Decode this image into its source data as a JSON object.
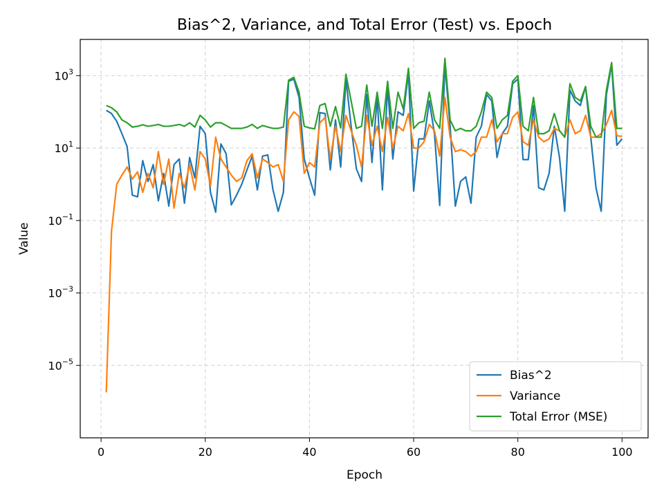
{
  "chart_data": {
    "type": "line",
    "title": "Bias^2, Variance, and Total Error (Test) vs. Epoch",
    "xlabel": "Epoch",
    "ylabel": "Value",
    "xlim": [
      -4,
      105
    ],
    "ylim": [
      1e-07,
      10000.0
    ],
    "yscale": "log",
    "xticks": [
      0,
      20,
      40,
      60,
      80,
      100
    ],
    "xtick_labels": [
      "0",
      "20",
      "40",
      "60",
      "80",
      "100"
    ],
    "ytick_exponents": [
      -5,
      -3,
      -1,
      1,
      3
    ],
    "grid": true,
    "legend_position": "lower-right",
    "x": [
      1,
      2,
      3,
      4,
      5,
      6,
      7,
      8,
      9,
      10,
      11,
      12,
      13,
      14,
      15,
      16,
      17,
      18,
      19,
      20,
      21,
      22,
      23,
      24,
      25,
      26,
      27,
      28,
      29,
      30,
      31,
      32,
      33,
      34,
      35,
      36,
      37,
      38,
      39,
      40,
      41,
      42,
      43,
      44,
      45,
      46,
      47,
      48,
      49,
      50,
      51,
      52,
      53,
      54,
      55,
      56,
      57,
      58,
      59,
      60,
      61,
      62,
      63,
      64,
      65,
      66,
      67,
      68,
      69,
      70,
      71,
      72,
      73,
      74,
      75,
      76,
      77,
      78,
      79,
      80,
      81,
      82,
      83,
      84,
      85,
      86,
      87,
      88,
      89,
      90,
      91,
      92,
      93,
      94,
      95,
      96,
      97,
      98,
      99,
      100
    ],
    "series": [
      {
        "name": "Bias^2",
        "color": "#1f77b4",
        "values": [
          110,
          90,
          55,
          25,
          11,
          0.5,
          0.45,
          4.5,
          1.2,
          3.5,
          0.35,
          2,
          0.25,
          3.5,
          5,
          0.3,
          5.5,
          1.5,
          40,
          25,
          0.6,
          0.17,
          13,
          7,
          0.27,
          0.5,
          1,
          2.5,
          6,
          0.7,
          6,
          6.5,
          0.7,
          0.18,
          0.6,
          700,
          800,
          250,
          5,
          1.5,
          0.5,
          95,
          90,
          2.5,
          60,
          3,
          800,
          40,
          2.7,
          1.2,
          300,
          4,
          250,
          0.7,
          500,
          5,
          100,
          80,
          1200,
          0.65,
          18,
          18,
          200,
          25,
          0.26,
          2000,
          40,
          0.25,
          1.2,
          1.6,
          0.3,
          20,
          40,
          300,
          200,
          5.5,
          25,
          40,
          600,
          800,
          4.8,
          4.8,
          150,
          0.8,
          0.7,
          2,
          40,
          5.5,
          0.18,
          400,
          200,
          150,
          500,
          20,
          0.8,
          0.18,
          300,
          2000,
          12,
          18
        ]
      },
      {
        "name": "Variance",
        "color": "#ff7f0e",
        "values": [
          1.8e-06,
          0.05,
          1,
          1.8,
          3,
          1.4,
          2.2,
          0.6,
          2,
          0.8,
          8,
          1,
          5,
          0.22,
          2,
          0.8,
          3.5,
          0.7,
          8,
          5,
          0.9,
          20,
          5,
          3,
          1.8,
          1.2,
          1.5,
          4.5,
          7,
          1.5,
          5,
          4,
          3,
          3.5,
          1.2,
          60,
          100,
          75,
          2,
          4,
          3,
          50,
          70,
          5,
          40,
          8,
          80,
          30,
          12,
          3,
          80,
          12,
          40,
          8,
          70,
          10,
          40,
          30,
          90,
          10,
          10,
          15,
          45,
          30,
          6,
          250,
          20,
          8,
          9,
          8,
          6,
          8,
          20,
          20,
          60,
          15,
          25,
          25,
          70,
          100,
          15,
          12,
          60,
          20,
          15,
          18,
          35,
          30,
          20,
          60,
          25,
          30,
          80,
          20,
          20,
          25,
          45,
          110,
          22,
          21
        ]
      },
      {
        "name": "Total Error (MSE)",
        "color": "#2ca02c",
        "values": [
          150,
          130,
          100,
          60,
          50,
          38,
          40,
          44,
          40,
          42,
          45,
          40,
          40,
          42,
          45,
          40,
          50,
          38,
          80,
          60,
          38,
          50,
          50,
          42,
          35,
          35,
          35,
          38,
          45,
          35,
          42,
          38,
          35,
          35,
          38,
          750,
          900,
          350,
          40,
          36,
          34,
          150,
          170,
          40,
          140,
          36,
          1100,
          200,
          35,
          40,
          550,
          40,
          350,
          35,
          700,
          35,
          350,
          120,
          1600,
          35,
          50,
          55,
          350,
          60,
          35,
          3000,
          60,
          30,
          35,
          30,
          30,
          40,
          100,
          350,
          250,
          35,
          60,
          80,
          700,
          1000,
          40,
          30,
          250,
          25,
          25,
          30,
          90,
          30,
          20,
          600,
          250,
          200,
          500,
          40,
          20,
          20,
          400,
          2300,
          35,
          35
        ]
      }
    ]
  }
}
